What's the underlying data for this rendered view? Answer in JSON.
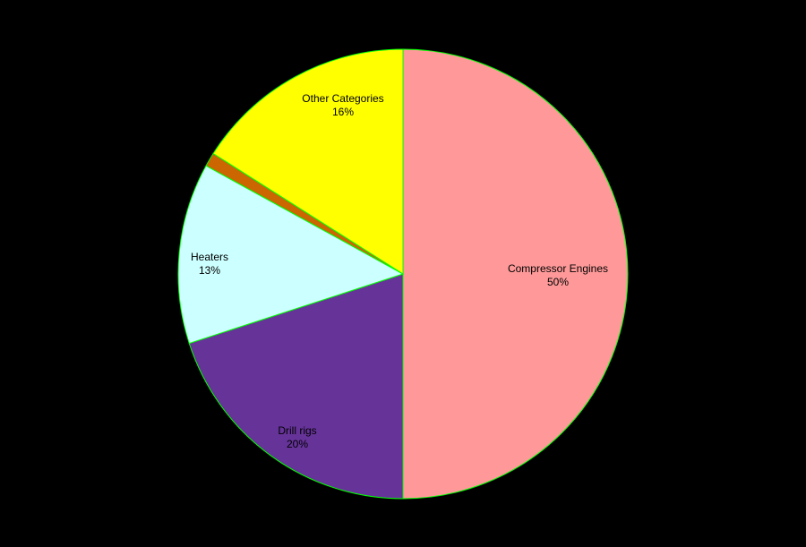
{
  "chart_data": {
    "type": "pie",
    "background": "#000000",
    "border_color": "#00ff00",
    "slices": [
      {
        "label": "Compressor Engines",
        "pct_text": "50%",
        "value": 50,
        "color": "#ff9999"
      },
      {
        "label": "Drill rigs",
        "pct_text": "20%",
        "value": 20,
        "color": "#663399"
      },
      {
        "label": "Heaters",
        "pct_text": "13%",
        "value": 13,
        "color": "#ccffff"
      },
      {
        "label": "",
        "pct_text": "",
        "value": 1,
        "color": "#cc6600"
      },
      {
        "label": "Other Categories",
        "pct_text": "16%",
        "value": 16,
        "color": "#ffff00"
      }
    ]
  }
}
